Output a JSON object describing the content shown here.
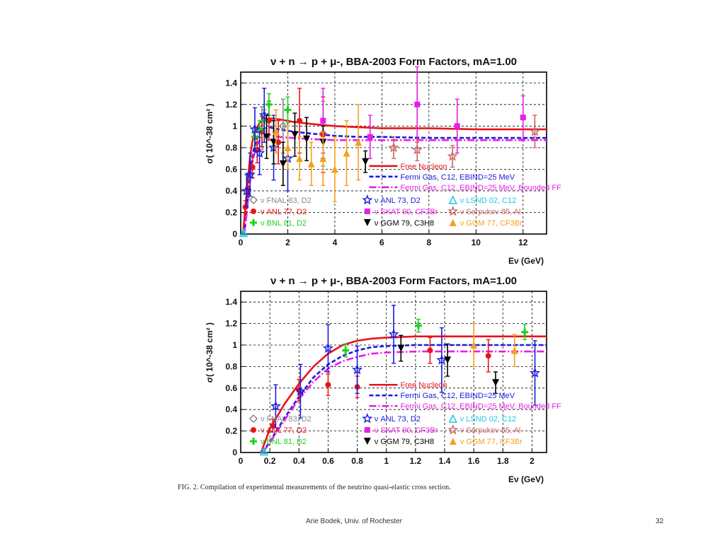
{
  "footer": {
    "author": "Arie Bodek,  Univ. of Rochester",
    "page": "32"
  },
  "caption": "FIG. 2. Compilation of experimental measurements of the neutrino quasi-elastic cross section.",
  "colors": {
    "free_nucleon": "#e8141c",
    "fermi_gas": "#1a1adc",
    "fermi_gas_bounded": "#e61ee6",
    "fnal": "#888888",
    "anl77": "#e8141c",
    "bnl": "#19d219",
    "anl73": "#1a1adc",
    "skat": "#e61ee6",
    "ggm79": "#000000",
    "lsnd": "#19c8e6",
    "serpukov": "#c86464",
    "ggm77": "#f5a019"
  },
  "chart_data": [
    {
      "type": "scatter",
      "title": "ν + n → p + μ-, BBA-2003 Form Factors, mA=1.00",
      "xlabel": "Eν (GeV)",
      "ylabel": "σ( 10^-38 cm² )",
      "xlim": [
        0,
        13
      ],
      "ylim": [
        0,
        1.5
      ],
      "xticks": [
        0,
        2,
        4,
        6,
        8,
        10,
        12
      ],
      "yticks": [
        0,
        0.2,
        0.4,
        0.6,
        0.8,
        1,
        1.2,
        1.4
      ],
      "grid": true,
      "lines": [
        {
          "name": "Free Nucleon",
          "color": "#e8141c",
          "dash": "",
          "x": [
            0.1,
            0.2,
            0.3,
            0.4,
            0.5,
            0.6,
            0.8,
            1.0,
            1.3,
            1.7,
            2.2,
            3,
            4,
            5,
            6,
            8,
            10,
            12,
            13
          ],
          "y": [
            0.0,
            0.25,
            0.5,
            0.72,
            0.86,
            0.95,
            1.03,
            1.06,
            1.07,
            1.06,
            1.04,
            1.02,
            1.0,
            0.99,
            0.98,
            0.98,
            0.97,
            0.97,
            0.97
          ]
        },
        {
          "name": "Fermi Gas, C12, EBIND=25 MeV",
          "color": "#1a1adc",
          "dash": "6,3",
          "x": [
            0.15,
            0.25,
            0.35,
            0.45,
            0.55,
            0.7,
            0.9,
            1.2,
            1.6,
            2.2,
            3,
            4,
            5,
            6,
            8,
            10,
            12,
            13
          ],
          "y": [
            0.0,
            0.2,
            0.45,
            0.65,
            0.78,
            0.9,
            0.97,
            0.99,
            0.97,
            0.95,
            0.93,
            0.91,
            0.9,
            0.9,
            0.89,
            0.89,
            0.89,
            0.89
          ]
        },
        {
          "name": "Fermi Gas, C12, EBIND=25 MeV, Bounded FF",
          "color": "#e61ee6",
          "dash": "10,3,2,3",
          "x": [
            0.15,
            0.25,
            0.35,
            0.45,
            0.55,
            0.7,
            0.9,
            1.2,
            1.6,
            2.2,
            3,
            4,
            5,
            6,
            8,
            10,
            12,
            13
          ],
          "y": [
            0.0,
            0.18,
            0.4,
            0.6,
            0.72,
            0.83,
            0.9,
            0.92,
            0.9,
            0.89,
            0.88,
            0.87,
            0.87,
            0.87,
            0.87,
            0.87,
            0.87,
            0.87
          ]
        }
      ],
      "series": [
        {
          "name": "ν FNAL 83, D2",
          "marker": "diamond",
          "color": "#888888",
          "points": [
            [
              0.9,
              0.98,
              0.2
            ],
            [
              1.8,
              1.0,
              0.25
            ],
            [
              3.5,
              0.93,
              0.3
            ]
          ]
        },
        {
          "name": "ν ANL 77, D2",
          "marker": "circle",
          "color": "#e8141c",
          "points": [
            [
              0.2,
              0.25,
              0.06
            ],
            [
              0.3,
              0.42,
              0.08
            ],
            [
              0.5,
              0.62,
              0.1
            ],
            [
              0.7,
              0.78,
              0.12
            ],
            [
              0.9,
              0.95,
              0.14
            ],
            [
              1.2,
              1.05,
              0.18
            ],
            [
              1.6,
              0.85,
              0.2
            ],
            [
              2.5,
              1.05,
              0.3
            ],
            [
              3.5,
              0.92,
              0.35
            ]
          ]
        },
        {
          "name": "ν BNL 81, D2",
          "marker": "cross",
          "color": "#19d219",
          "points": [
            [
              0.6,
              0.9,
              0.08
            ],
            [
              0.8,
              0.97,
              0.08
            ],
            [
              1.0,
              1.05,
              0.1
            ],
            [
              1.2,
              1.2,
              0.1
            ],
            [
              2.0,
              1.15,
              0.12
            ]
          ]
        },
        {
          "name": "ν ANL 73, D2",
          "marker": "star",
          "color": "#1a1adc",
          "points": [
            [
              0.25,
              0.4,
              0.15
            ],
            [
              0.4,
              0.55,
              0.2
            ],
            [
              0.6,
              0.97,
              0.2
            ],
            [
              0.8,
              0.75,
              0.2
            ],
            [
              1.0,
              1.1,
              0.25
            ],
            [
              1.4,
              0.8,
              0.3
            ],
            [
              2.0,
              0.7,
              0.3
            ]
          ]
        },
        {
          "name": "ν SKAT 90, CF3Br",
          "marker": "square",
          "color": "#e61ee6",
          "points": [
            [
              3.5,
              1.05,
              0.3
            ],
            [
              5.5,
              0.9,
              0.2
            ],
            [
              7.5,
              1.2,
              0.35
            ],
            [
              9.2,
              1.0,
              0.25
            ],
            [
              12.0,
              1.08,
              0.2
            ]
          ]
        },
        {
          "name": "ν GGM 79, C3H8",
          "marker": "tri-down",
          "color": "#000000",
          "points": [
            [
              1.1,
              0.9,
              0.2
            ],
            [
              1.4,
              0.85,
              0.2
            ],
            [
              1.8,
              0.65,
              0.2
            ],
            [
              2.3,
              0.92,
              0.2
            ],
            [
              2.8,
              0.88,
              0.2
            ],
            [
              3.5,
              0.85,
              0.15
            ],
            [
              5.3,
              0.67,
              0.1
            ]
          ]
        },
        {
          "name": "ν LSND 02, C12",
          "marker": "tri-up-open",
          "color": "#19c8e6",
          "points": [
            [
              0.12,
              0.01,
              0.02
            ]
          ]
        },
        {
          "name": "ν Serpukov 85, Al",
          "marker": "star",
          "color": "#c86464",
          "points": [
            [
              6.5,
              0.8,
              0.1
            ],
            [
              7.5,
              0.78,
              0.1
            ],
            [
              9.0,
              0.72,
              0.1
            ],
            [
              12.5,
              0.95,
              0.15
            ]
          ]
        },
        {
          "name": "ν GGM 77, CF3Br",
          "marker": "tri-up",
          "color": "#f5a019",
          "points": [
            [
              1.5,
              0.95,
              0.2
            ],
            [
              2.0,
              0.8,
              0.2
            ],
            [
              2.5,
              0.7,
              0.2
            ],
            [
              3.0,
              0.65,
              0.2
            ],
            [
              3.5,
              0.7,
              0.25
            ],
            [
              4.0,
              0.6,
              0.3
            ],
            [
              4.5,
              0.75,
              0.3
            ],
            [
              5.0,
              0.85,
              0.35
            ]
          ]
        }
      ],
      "legend_lines": [
        {
          "label": "Free Nucleon",
          "color": "#e8141c",
          "dash": ""
        },
        {
          "label": "Fermi Gas, C12, EBIND=25 MeV",
          "color": "#1a1adc",
          "dash": "6,3"
        },
        {
          "label": "Fermi Gas, C12, EBIND=25 MeV, Bounded FF",
          "color": "#e61ee6",
          "dash": "10,3,2,3"
        }
      ]
    },
    {
      "type": "scatter",
      "title": "ν + n → p + μ-, BBA-2003 Form Factors, mA=1.00",
      "xlabel": "Eν (GeV)",
      "ylabel": "σ( 10^-38 cm² )",
      "xlim": [
        0,
        2.1
      ],
      "ylim": [
        0,
        1.5
      ],
      "xticks": [
        0,
        0.2,
        0.4,
        0.6,
        0.8,
        1,
        1.2,
        1.4,
        1.6,
        1.8,
        2
      ],
      "yticks": [
        0,
        0.2,
        0.4,
        0.6,
        0.8,
        1,
        1.2,
        1.4
      ],
      "grid": true,
      "lines": [
        {
          "name": "Free Nucleon",
          "color": "#e8141c",
          "dash": "",
          "x": [
            0.14,
            0.2,
            0.3,
            0.4,
            0.5,
            0.6,
            0.7,
            0.8,
            0.9,
            1.0,
            1.2,
            1.5,
            1.8,
            2.1
          ],
          "y": [
            0.0,
            0.22,
            0.45,
            0.64,
            0.8,
            0.92,
            1.0,
            1.04,
            1.06,
            1.07,
            1.08,
            1.08,
            1.08,
            1.08
          ]
        },
        {
          "name": "Fermi Gas, C12, EBIND=25 MeV",
          "color": "#1a1adc",
          "dash": "6,3",
          "x": [
            0.15,
            0.2,
            0.3,
            0.4,
            0.5,
            0.6,
            0.7,
            0.8,
            0.9,
            1.0,
            1.2,
            1.5,
            1.8,
            2.1
          ],
          "y": [
            0.0,
            0.1,
            0.32,
            0.52,
            0.7,
            0.82,
            0.9,
            0.95,
            0.98,
            0.99,
            1.0,
            1.0,
            1.0,
            1.0
          ]
        },
        {
          "name": "Fermi Gas, C12, EBIND=25 MeV, Bounded FF",
          "color": "#e61ee6",
          "dash": "10,3,2,3",
          "x": [
            0.15,
            0.2,
            0.3,
            0.4,
            0.5,
            0.6,
            0.7,
            0.8,
            0.9,
            1.0,
            1.2,
            1.5,
            1.8,
            2.1
          ],
          "y": [
            0.0,
            0.09,
            0.3,
            0.5,
            0.66,
            0.78,
            0.85,
            0.89,
            0.92,
            0.93,
            0.94,
            0.94,
            0.94,
            0.94
          ]
        }
      ],
      "series": [
        {
          "name": "ν FNAL 83, D2",
          "marker": "diamond",
          "color": "#888888",
          "points": []
        },
        {
          "name": "ν ANL 77, D2",
          "marker": "circle",
          "color": "#e8141c",
          "points": [
            [
              0.22,
              0.25,
              0.06
            ],
            [
              0.4,
              0.58,
              0.1
            ],
            [
              0.6,
              0.63,
              0.1
            ],
            [
              0.8,
              0.61,
              0.1
            ],
            [
              1.3,
              0.95,
              0.12
            ],
            [
              1.7,
              0.9,
              0.15
            ]
          ]
        },
        {
          "name": "ν BNL 81, D2",
          "marker": "cross",
          "color": "#19d219",
          "points": [
            [
              0.72,
              0.95,
              0.06
            ],
            [
              1.22,
              1.18,
              0.06
            ],
            [
              1.95,
              1.12,
              0.07
            ]
          ]
        },
        {
          "name": "ν ANL 73, D2",
          "marker": "star",
          "color": "#1a1adc",
          "points": [
            [
              0.24,
              0.43,
              0.2
            ],
            [
              0.41,
              0.57,
              0.25
            ],
            [
              0.6,
              0.97,
              0.22
            ],
            [
              0.8,
              0.77,
              0.22
            ],
            [
              1.05,
              1.1,
              0.27
            ],
            [
              1.38,
              0.86,
              0.3
            ],
            [
              2.02,
              0.74,
              0.3
            ]
          ]
        },
        {
          "name": "ν SKAT 90, CF3Br",
          "marker": "square",
          "color": "#e61ee6",
          "points": []
        },
        {
          "name": "ν GGM 79, C3H8",
          "marker": "tri-down",
          "color": "#000000",
          "points": [
            [
              1.1,
              0.97,
              0.12
            ],
            [
              1.42,
              0.86,
              0.15
            ],
            [
              1.75,
              0.65,
              0.1
            ]
          ]
        },
        {
          "name": "ν LSND 02, C12",
          "marker": "tri-up-open",
          "color": "#19c8e6",
          "points": [
            [
              0.16,
              0.01,
              0.02
            ]
          ]
        },
        {
          "name": "ν Serpukov 85, Al",
          "marker": "star",
          "color": "#c86464",
          "points": []
        },
        {
          "name": "ν GGM 77, CF3Br",
          "marker": "tri-up",
          "color": "#f5a019",
          "points": [
            [
              1.6,
              1.0,
              0.2
            ],
            [
              1.88,
              0.95,
              0.15
            ]
          ]
        }
      ],
      "legend_lines": [
        {
          "label": "Free Nucleon",
          "color": "#e8141c",
          "dash": ""
        },
        {
          "label": "Fermi Gas, C12, EBIND=25 MeV",
          "color": "#1a1adc",
          "dash": "6,3"
        },
        {
          "label": "Fermi Gas, C12, EBIND=25 MeV, Bounded FF",
          "color": "#e61ee6",
          "dash": "10,3,2,3"
        }
      ]
    }
  ]
}
